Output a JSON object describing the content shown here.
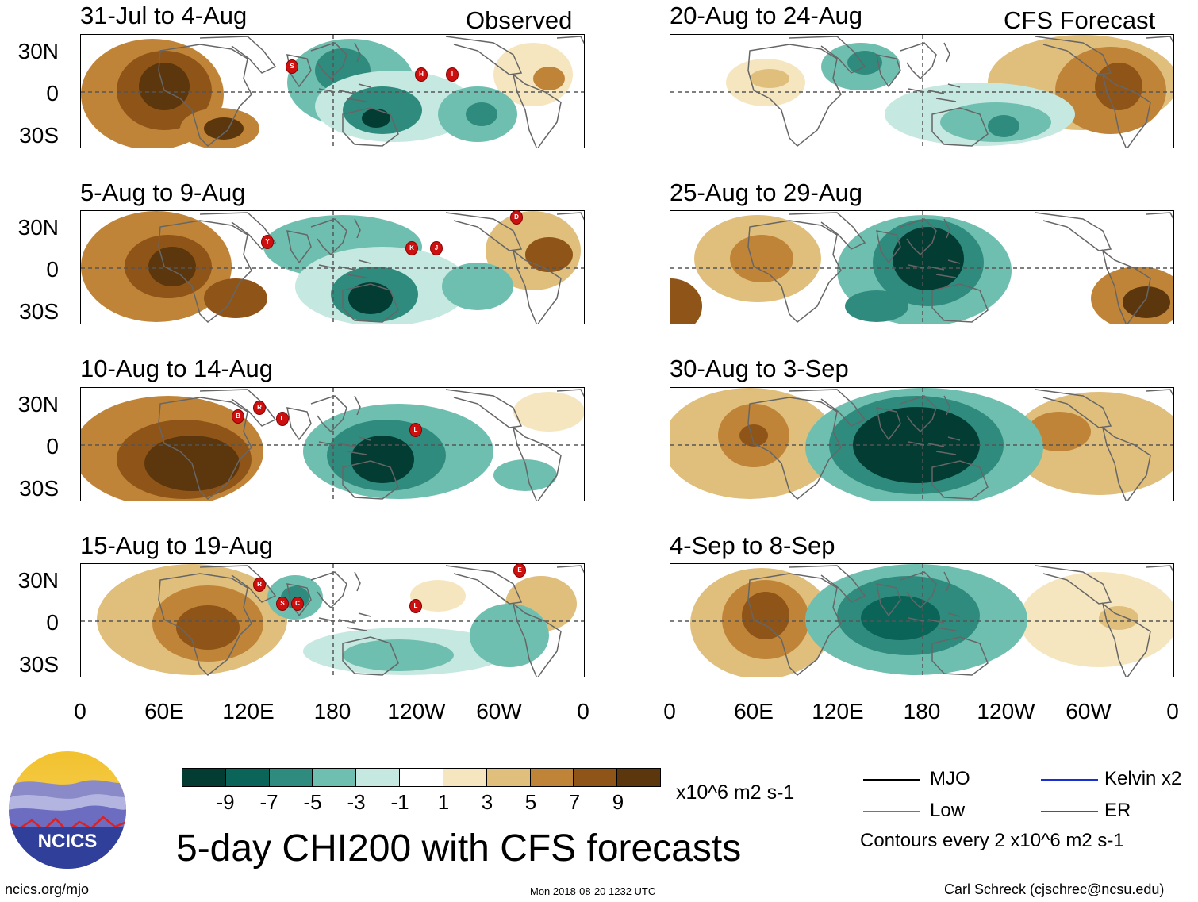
{
  "panels_observed": [
    {
      "title": "31-Jul to 4-Aug",
      "corner_label": "Observed",
      "storms": [
        "S",
        "H",
        "I"
      ]
    },
    {
      "title": "5-Aug to 9-Aug",
      "corner_label": "",
      "storms": [
        "Y",
        "K",
        "J",
        "D"
      ]
    },
    {
      "title": "10-Aug to 14-Aug",
      "corner_label": "",
      "storms": [
        "B",
        "R",
        "L",
        "L"
      ]
    },
    {
      "title": "15-Aug to 19-Aug",
      "corner_label": "",
      "storms": [
        "R",
        "S",
        "C",
        "L",
        "E"
      ]
    }
  ],
  "panels_forecast": [
    {
      "title": "20-Aug to 24-Aug",
      "corner_label": "CFS Forecast"
    },
    {
      "title": "25-Aug to 29-Aug",
      "corner_label": ""
    },
    {
      "title": "30-Aug to 3-Sep",
      "corner_label": ""
    },
    {
      "title": "4-Sep to 8-Sep",
      "corner_label": ""
    }
  ],
  "y_ticks": [
    "30N",
    "0",
    "30S"
  ],
  "x_ticks": [
    "0",
    "60E",
    "120E",
    "180",
    "120W",
    "60W",
    "0"
  ],
  "colorbar": {
    "labels": [
      "-9",
      "-7",
      "-5",
      "-3",
      "-1",
      "1",
      "3",
      "5",
      "7",
      "9"
    ],
    "colors": [
      "#033c33",
      "#0a6458",
      "#2f8b7e",
      "#6fbfb0",
      "#c5e8e0",
      "#ffffff",
      "#f5e6bf",
      "#e0be7c",
      "#c08438",
      "#8f5417",
      "#5c360c"
    ],
    "units": "x10^6 m2 s-1"
  },
  "legend": {
    "items": [
      {
        "label": "MJO",
        "color": "#000000"
      },
      {
        "label": "Kelvin x2",
        "color": "#1a2fd0"
      },
      {
        "label": "Low",
        "color": "#a24be0"
      },
      {
        "label": "ER",
        "color": "#e01818"
      }
    ],
    "contour_note": "Contours every 2 x10^6 m2 s-1"
  },
  "logo_text": "NCICS",
  "main_title": "5-day CHI200 with CFS forecasts",
  "footer": {
    "url": "ncics.org/mjo",
    "timestamp": "Mon 2018-08-20 1232 UTC",
    "author": "Carl Schreck (cjschrec@ncsu.edu)"
  }
}
